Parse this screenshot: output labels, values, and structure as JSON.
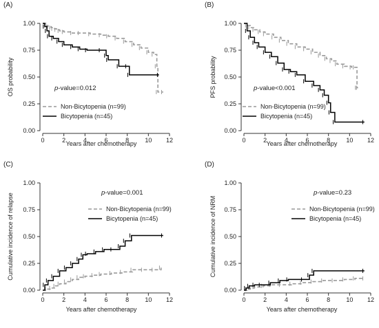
{
  "colors": {
    "non_bicytopenia": "#999999",
    "bicytopenia": "#000000",
    "axis": "#333333"
  },
  "chart_data": [
    {
      "panel": "(A)",
      "type": "line",
      "ylabel": "OS probability",
      "xlabel": "Years after chemotherapy",
      "xlim": [
        0,
        12
      ],
      "ylim": [
        0,
        1
      ],
      "xticks": [
        "0",
        "2",
        "4",
        "6",
        "8",
        "10",
        "12"
      ],
      "yticks": [
        "0.00",
        "0.25",
        "0.50",
        "0.75",
        "1.00"
      ],
      "annotation": {
        "italic": "p",
        "rest": "-value=0.012"
      },
      "legend": [
        "Non-Bicytopenia (n=99)",
        "Bicytopenia (n=45)"
      ],
      "series": [
        {
          "name": "Non-Bicytopenia (n=99)",
          "style": "dashed",
          "x": [
            0,
            0.3,
            0.5,
            0.8,
            1.0,
            1.3,
            1.6,
            2.0,
            2.8,
            3.5,
            4.5,
            5.5,
            6.2,
            7.0,
            7.8,
            8.6,
            9.3,
            10.0,
            10.5,
            10.8,
            10.9,
            11.4
          ],
          "y": [
            1.0,
            0.98,
            0.97,
            0.96,
            0.95,
            0.94,
            0.93,
            0.92,
            0.91,
            0.91,
            0.9,
            0.89,
            0.88,
            0.86,
            0.83,
            0.8,
            0.77,
            0.73,
            0.71,
            0.6,
            0.36,
            0.36
          ]
        },
        {
          "name": "Bicytopenia (n=45)",
          "style": "solid",
          "x": [
            0,
            0.2,
            0.4,
            0.6,
            1.0,
            1.5,
            2.0,
            2.8,
            3.5,
            4.2,
            5.5,
            6.0,
            6.2,
            7.2,
            8.0,
            8.2,
            11.0
          ],
          "y": [
            1.0,
            0.97,
            0.93,
            0.88,
            0.86,
            0.83,
            0.8,
            0.78,
            0.76,
            0.75,
            0.75,
            0.7,
            0.66,
            0.6,
            0.6,
            0.52,
            0.52
          ]
        }
      ]
    },
    {
      "panel": "(B)",
      "type": "line",
      "ylabel": "PFS probability",
      "xlabel": "Years after chemotherapy",
      "xlim": [
        0,
        12
      ],
      "ylim": [
        0,
        1
      ],
      "xticks": [
        "0",
        "2",
        "4",
        "6",
        "8",
        "10",
        "12"
      ],
      "yticks": [
        "0.00",
        "0.25",
        "0.50",
        "0.75",
        "1.00"
      ],
      "annotation": {
        "italic": "p",
        "rest": "-value<0.001"
      },
      "legend": [
        "Non-Bicytopenia (n=99)",
        "Bicytopenia (n=45)"
      ],
      "series": [
        {
          "name": "Non-Bicytopenia (n=99)",
          "style": "dashed",
          "x": [
            0,
            0.3,
            0.6,
            1.0,
            1.5,
            2.0,
            2.8,
            3.5,
            4.2,
            5.0,
            5.8,
            6.5,
            7.2,
            7.8,
            8.3,
            8.8,
            9.5,
            10.2,
            10.5,
            10.7,
            10.8
          ],
          "y": [
            1.0,
            0.98,
            0.96,
            0.94,
            0.92,
            0.9,
            0.87,
            0.84,
            0.81,
            0.78,
            0.76,
            0.73,
            0.7,
            0.67,
            0.65,
            0.62,
            0.6,
            0.59,
            0.59,
            0.4,
            0.4
          ]
        },
        {
          "name": "Bicytopenia (n=45)",
          "style": "solid",
          "x": [
            0,
            0.3,
            0.6,
            1.0,
            1.4,
            2.0,
            2.6,
            3.2,
            3.8,
            4.4,
            5.0,
            5.8,
            6.6,
            7.2,
            7.6,
            8.0,
            8.2,
            8.6,
            11.4
          ],
          "y": [
            1.0,
            0.93,
            0.87,
            0.82,
            0.78,
            0.73,
            0.69,
            0.63,
            0.57,
            0.55,
            0.52,
            0.46,
            0.42,
            0.38,
            0.33,
            0.26,
            0.17,
            0.08,
            0.08
          ]
        }
      ]
    },
    {
      "panel": "(C)",
      "type": "line",
      "ylabel": "Cumulative incidence of relapse",
      "xlabel": "Years after chemotherapy",
      "xlim": [
        0,
        12
      ],
      "ylim": [
        0,
        1
      ],
      "xticks": [
        "0",
        "2",
        "4",
        "6",
        "8",
        "10",
        "12"
      ],
      "yticks": [
        "0.00",
        "0.25",
        "0.50",
        "0.75",
        "1.00"
      ],
      "annotation": {
        "italic": "p",
        "rest": "-value=0.001"
      },
      "legend": [
        "Non-Bicytopenia (n=99)",
        "Bicytopenia (n=45)"
      ],
      "series": [
        {
          "name": "Non-Bicytopenia (n=99)",
          "style": "dashed",
          "x": [
            0,
            0.4,
            0.8,
            1.2,
            1.6,
            2.2,
            2.8,
            3.4,
            4.0,
            4.8,
            5.5,
            6.5,
            7.5,
            8.5,
            9.5,
            10.5,
            11.2
          ],
          "y": [
            0.0,
            0.01,
            0.02,
            0.04,
            0.06,
            0.08,
            0.1,
            0.12,
            0.13,
            0.14,
            0.15,
            0.16,
            0.17,
            0.19,
            0.19,
            0.19,
            0.21
          ]
        },
        {
          "name": "Bicytopenia (n=45)",
          "style": "solid",
          "x": [
            0,
            0.2,
            0.5,
            1.0,
            1.6,
            2.2,
            2.8,
            3.4,
            3.8,
            4.2,
            5.0,
            5.8,
            6.6,
            7.3,
            7.8,
            8.4,
            11.4
          ],
          "y": [
            0.0,
            0.05,
            0.09,
            0.13,
            0.18,
            0.21,
            0.25,
            0.29,
            0.33,
            0.34,
            0.36,
            0.38,
            0.38,
            0.41,
            0.46,
            0.51,
            0.51
          ]
        }
      ]
    },
    {
      "panel": "(D)",
      "type": "line",
      "ylabel": "Cumulative incidence of NRM",
      "xlabel": "Years after chemotherapy",
      "xlim": [
        0,
        12
      ],
      "ylim": [
        0,
        1
      ],
      "xticks": [
        "0",
        "2",
        "4",
        "6",
        "8",
        "10",
        "12"
      ],
      "yticks": [
        "0.00",
        "0.25",
        "0.50",
        "0.75",
        "1.00"
      ],
      "annotation": {
        "italic": "p",
        "rest": "-value=0.23"
      },
      "legend": [
        "Non-Bicytopenia (n=99)",
        "Bicytopenia (n=45)"
      ],
      "series": [
        {
          "name": "Non-Bicytopenia (n=99)",
          "style": "dashed",
          "x": [
            0,
            0.3,
            0.6,
            1.0,
            1.8,
            2.6,
            3.5,
            4.5,
            5.5,
            6.5,
            7.5,
            8.5,
            9.5,
            10.5,
            11.4
          ],
          "y": [
            0.0,
            0.01,
            0.02,
            0.03,
            0.04,
            0.05,
            0.05,
            0.06,
            0.07,
            0.08,
            0.09,
            0.09,
            0.1,
            0.11,
            0.11
          ]
        },
        {
          "name": "Bicytopenia (n=45)",
          "style": "solid",
          "x": [
            0,
            0.2,
            0.5,
            1.0,
            1.6,
            2.5,
            3.4,
            4.2,
            5.6,
            6.2,
            6.6,
            11.4
          ],
          "y": [
            0.0,
            0.02,
            0.04,
            0.05,
            0.05,
            0.07,
            0.09,
            0.1,
            0.1,
            0.14,
            0.18,
            0.18
          ]
        }
      ]
    }
  ]
}
